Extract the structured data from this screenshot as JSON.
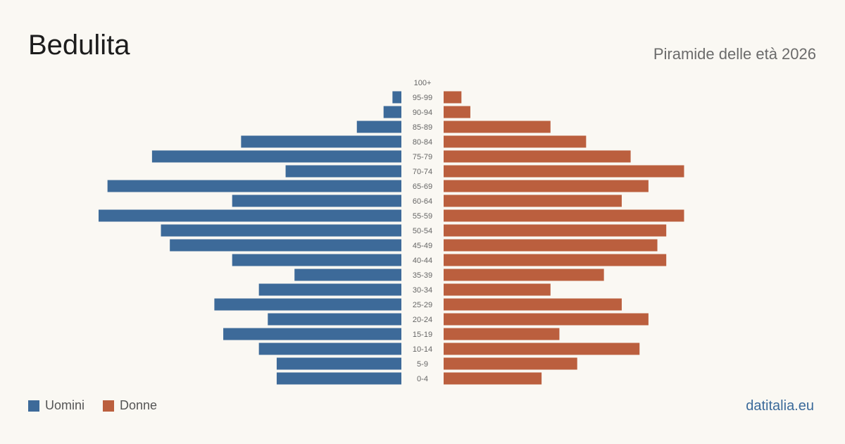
{
  "header": {
    "title": "Bedulita",
    "subtitle": "Piramide delle età 2026"
  },
  "legend": {
    "men_label": "Uomini",
    "women_label": "Donne"
  },
  "footer": {
    "brand": "datitalia.eu"
  },
  "colors": {
    "men": "#3d6a99",
    "women": "#bb5f3e",
    "background": "#faf8f3"
  },
  "chart_data": {
    "type": "bar",
    "orientation": "horizontal-pyramid",
    "categories": [
      "100+",
      "95-99",
      "90-94",
      "85-89",
      "80-84",
      "75-79",
      "70-74",
      "65-69",
      "60-64",
      "55-59",
      "50-54",
      "45-49",
      "40-44",
      "35-39",
      "30-34",
      "25-29",
      "20-24",
      "15-19",
      "10-14",
      "5-9",
      "0-4"
    ],
    "series": [
      {
        "name": "Uomini",
        "values": [
          0,
          1,
          2,
          5,
          18,
          28,
          13,
          33,
          19,
          34,
          27,
          26,
          19,
          12,
          16,
          21,
          15,
          20,
          16,
          14,
          14
        ]
      },
      {
        "name": "Donne",
        "values": [
          0,
          2,
          3,
          12,
          16,
          21,
          27,
          23,
          20,
          27,
          25,
          24,
          25,
          18,
          12,
          20,
          23,
          13,
          22,
          15,
          11
        ]
      }
    ],
    "xlim": [
      0,
      34
    ]
  }
}
